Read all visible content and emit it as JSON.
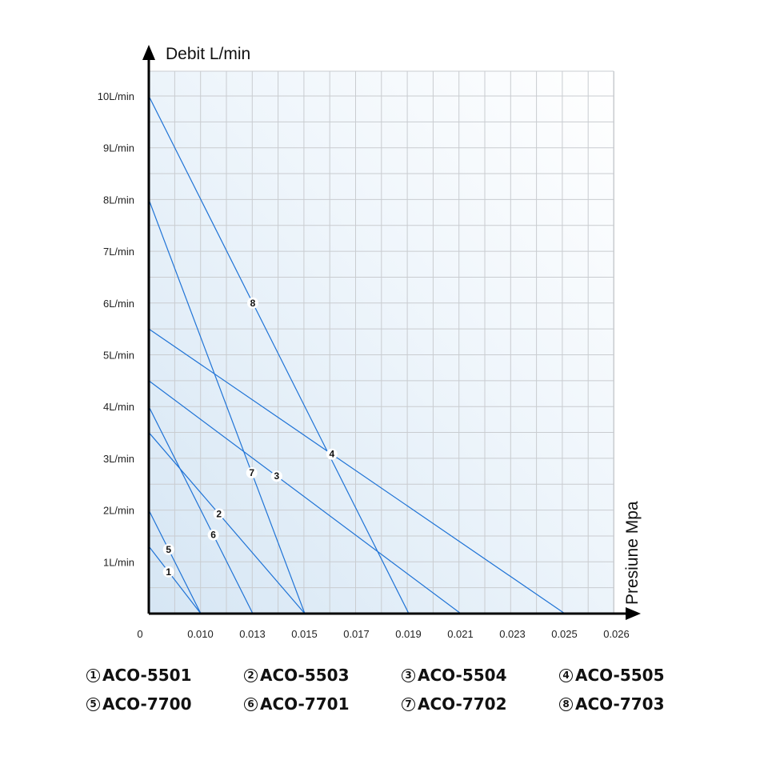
{
  "chart_data": {
    "type": "line",
    "ylabel": "Debit L/min",
    "xlabel": "Presiune Mpa",
    "y_ticks": [
      "10L/min",
      "9L/min",
      "8L/min",
      "7L/min",
      "6L/min",
      "5L/min",
      "4L/min",
      "3L/min",
      "2L/min",
      "1L/min"
    ],
    "y_tick_values": [
      10,
      9,
      8,
      7,
      6,
      5,
      4,
      3,
      2,
      1
    ],
    "x_ticks": [
      "0",
      "0.010",
      "0.013",
      "0.015",
      "0.017",
      "0.019",
      "0.021",
      "0.023",
      "0.025",
      "0.026"
    ],
    "ylim": [
      0,
      10.5
    ],
    "xlim": [
      0,
      0.026
    ],
    "grid": true,
    "series": [
      {
        "id": "1",
        "name": "ACO-5501",
        "points": [
          [
            0,
            1.3
          ],
          [
            0.01,
            0
          ]
        ]
      },
      {
        "id": "2",
        "name": "ACO-5503",
        "points": [
          [
            0,
            3.5
          ],
          [
            0.015,
            0
          ]
        ]
      },
      {
        "id": "3",
        "name": "ACO-5504",
        "points": [
          [
            0,
            4.5
          ],
          [
            0.021,
            0
          ]
        ]
      },
      {
        "id": "4",
        "name": "ACO-5505",
        "points": [
          [
            0,
            5.5
          ],
          [
            0.025,
            0
          ]
        ]
      },
      {
        "id": "5",
        "name": "ACO-7700",
        "points": [
          [
            0,
            2.0
          ],
          [
            0.01,
            0
          ]
        ]
      },
      {
        "id": "6",
        "name": "ACO-7701",
        "points": [
          [
            0,
            4.0
          ],
          [
            0.013,
            0
          ]
        ]
      },
      {
        "id": "7",
        "name": "ACO-7702",
        "points": [
          [
            0,
            8.0
          ],
          [
            0.015,
            0
          ]
        ]
      },
      {
        "id": "8",
        "name": "ACO-7703",
        "points": [
          [
            0,
            10.0
          ],
          [
            0.019,
            0
          ]
        ]
      }
    ],
    "legend": [
      {
        "num": "1",
        "name": "ACO-5501"
      },
      {
        "num": "2",
        "name": "ACO-5503"
      },
      {
        "num": "3",
        "name": "ACO-5504"
      },
      {
        "num": "4",
        "name": "ACO-5505"
      },
      {
        "num": "5",
        "name": "ACO-7700"
      },
      {
        "num": "6",
        "name": "ACO-7701"
      },
      {
        "num": "7",
        "name": "ACO-7702"
      },
      {
        "num": "8",
        "name": "ACO-7703"
      }
    ],
    "colors": {
      "line": "#1f73d6",
      "grid": "#c9ccd0",
      "axis": "#000000"
    }
  }
}
